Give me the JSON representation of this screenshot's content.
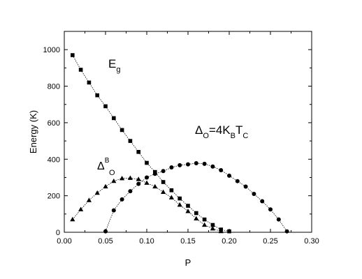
{
  "chart_data": {
    "type": "scatter",
    "xlabel": "P",
    "ylabel": "Energy (K)",
    "xlim": [
      0.0,
      0.3
    ],
    "ylim": [
      0,
      1100
    ],
    "xticks": [
      "0.00",
      "0.05",
      "0.10",
      "0.15",
      "0.20",
      "0.25",
      "0.30"
    ],
    "xtick_values": [
      0.0,
      0.05,
      0.1,
      0.15,
      0.2,
      0.25,
      0.3
    ],
    "yticks": [
      "0",
      "200",
      "400",
      "600",
      "800",
      "1000"
    ],
    "ytick_values": [
      0,
      200,
      400,
      600,
      800,
      1000
    ],
    "grid": false,
    "series": [
      {
        "marker": "square",
        "color": "#000000",
        "x": [
          0.01,
          0.02,
          0.03,
          0.04,
          0.05,
          0.06,
          0.07,
          0.08,
          0.09,
          0.1,
          0.11,
          0.12,
          0.13,
          0.14,
          0.15,
          0.16,
          0.17,
          0.18,
          0.19,
          0.2
        ],
        "y": [
          970,
          890,
          820,
          750,
          690,
          625,
          560,
          500,
          440,
          380,
          330,
          275,
          230,
          185,
          145,
          105,
          70,
          40,
          15,
          5
        ]
      },
      {
        "marker": "triangle",
        "color": "#000000",
        "x": [
          0.01,
          0.02,
          0.03,
          0.04,
          0.05,
          0.06,
          0.07,
          0.08,
          0.09,
          0.1,
          0.11,
          0.12,
          0.13,
          0.14,
          0.15,
          0.16,
          0.17,
          0.18,
          0.19
        ],
        "y": [
          70,
          125,
          175,
          215,
          250,
          280,
          295,
          297,
          290,
          270,
          250,
          220,
          190,
          150,
          115,
          75,
          40,
          20,
          5
        ]
      },
      {
        "marker": "circle",
        "color": "#000000",
        "x": [
          0.05,
          0.06,
          0.07,
          0.08,
          0.09,
          0.1,
          0.11,
          0.12,
          0.13,
          0.14,
          0.15,
          0.16,
          0.17,
          0.18,
          0.19,
          0.2,
          0.21,
          0.22,
          0.23,
          0.24,
          0.25,
          0.26,
          0.27
        ],
        "y": [
          5,
          120,
          180,
          225,
          265,
          300,
          320,
          335,
          355,
          367,
          372,
          378,
          375,
          360,
          340,
          310,
          280,
          250,
          210,
          170,
          125,
          70,
          5
        ]
      }
    ],
    "annotations": {
      "eg_main": "E",
      "eg_sub": "g",
      "delta_b_main": "Δ",
      "delta_b_sup": "B",
      "delta_b_sub": "O",
      "delta_o_main": "Δ",
      "delta_o_sub": "O",
      "delta_o_eq": "=4K",
      "delta_o_kb_sub": "B",
      "delta_o_t": "T",
      "delta_o_tc_sub": "C"
    }
  }
}
